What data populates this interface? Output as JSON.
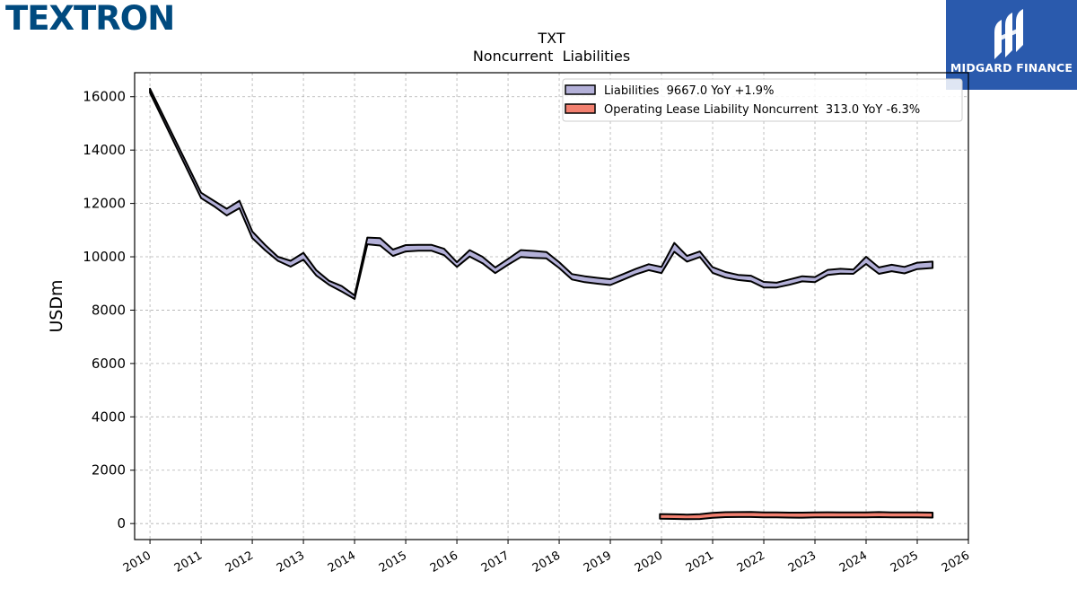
{
  "brand": {
    "name": "TEXTRON",
    "color": "#004a7f"
  },
  "partner": {
    "name": "MIDGARD FINANCE",
    "bg": "#2a5aad"
  },
  "chart_data": {
    "type": "area",
    "title": "TXT",
    "subtitle": "Noncurrent  Liabilities",
    "ylabel": "USDm",
    "xlabel": "",
    "xlim": [
      2009.7,
      2026.0
    ],
    "ylim": [
      -600,
      16900
    ],
    "x_ticks": [
      "2010",
      "2011",
      "2012",
      "2013",
      "2014",
      "2015",
      "2016",
      "2017",
      "2018",
      "2019",
      "2020",
      "2021",
      "2022",
      "2023",
      "2024",
      "2025",
      "2026"
    ],
    "y_ticks": [
      "0",
      "2000",
      "4000",
      "6000",
      "8000",
      "10000",
      "12000",
      "14000",
      "16000"
    ],
    "grid": true,
    "legend_position": "top-right",
    "series": [
      {
        "name": "Liabilities",
        "legend": "Liabilities  9667.0 YoY +1.9%",
        "color": "#b3b0d8",
        "x": [
          2010.0,
          2011.0,
          2011.25,
          2011.5,
          2011.75,
          2012.0,
          2012.25,
          2012.5,
          2012.75,
          2013.0,
          2013.25,
          2013.5,
          2013.75,
          2014.0,
          2014.25,
          2014.5,
          2014.75,
          2015.0,
          2015.25,
          2015.5,
          2015.75,
          2016.0,
          2016.25,
          2016.5,
          2016.75,
          2017.0,
          2017.25,
          2017.5,
          2017.75,
          2018.0,
          2018.25,
          2018.5,
          2018.75,
          2019.0,
          2019.25,
          2019.5,
          2019.75,
          2020.0,
          2020.25,
          2020.5,
          2020.75,
          2021.0,
          2021.25,
          2021.5,
          2021.75,
          2022.0,
          2022.25,
          2022.5,
          2022.75,
          2023.0,
          2023.25,
          2023.5,
          2023.75,
          2024.0,
          2024.25,
          2024.5,
          2024.75,
          2025.0,
          2025.3
        ],
        "upper": [
          16300,
          12400,
          12100,
          11800,
          12100,
          10950,
          10450,
          10000,
          9850,
          10150,
          9500,
          9100,
          8900,
          8550,
          10720,
          10700,
          10270,
          10440,
          10450,
          10450,
          10300,
          9800,
          10250,
          10000,
          9600,
          9920,
          10250,
          10220,
          10180,
          9800,
          9350,
          9270,
          9210,
          9160,
          9350,
          9550,
          9720,
          9620,
          10520,
          10030,
          10200,
          9610,
          9430,
          9320,
          9290,
          9060,
          9030,
          9150,
          9270,
          9240,
          9510,
          9550,
          9520,
          10000,
          9600,
          9700,
          9620,
          9780,
          9820
        ],
        "lower": [
          16150,
          12200,
          11900,
          11550,
          11820,
          10700,
          10250,
          9850,
          9630,
          9890,
          9300,
          8950,
          8700,
          8420,
          10470,
          10420,
          10030,
          10200,
          10230,
          10230,
          10060,
          9620,
          10010,
          9760,
          9390,
          9700,
          9990,
          9960,
          9940,
          9580,
          9150,
          9050,
          8990,
          8940,
          9140,
          9340,
          9500,
          9390,
          10190,
          9820,
          9990,
          9400,
          9220,
          9130,
          9080,
          8850,
          8850,
          8950,
          9080,
          9050,
          9320,
          9370,
          9360,
          9730,
          9360,
          9460,
          9380,
          9540,
          9580
        ]
      },
      {
        "name": "Operating Lease Liability Noncurrent",
        "legend": "Operating Lease Liability Noncurrent  313.0 YoY -6.3%",
        "color": "#f28070",
        "x": [
          2019.97,
          2020.25,
          2020.5,
          2020.75,
          2021.0,
          2021.25,
          2021.5,
          2021.75,
          2022.0,
          2022.25,
          2022.5,
          2022.75,
          2023.0,
          2023.25,
          2023.5,
          2023.75,
          2024.0,
          2024.25,
          2024.5,
          2024.75,
          2025.0,
          2025.3
        ],
        "upper": [
          355,
          345,
          335,
          350,
          400,
          425,
          430,
          432,
          420,
          415,
          410,
          408,
          418,
          422,
          420,
          415,
          420,
          430,
          420,
          418,
          415,
          410
        ],
        "lower": [
          180,
          175,
          165,
          170,
          215,
          240,
          245,
          245,
          235,
          230,
          225,
          222,
          232,
          236,
          233,
          230,
          235,
          242,
          235,
          233,
          230,
          225
        ]
      }
    ]
  }
}
